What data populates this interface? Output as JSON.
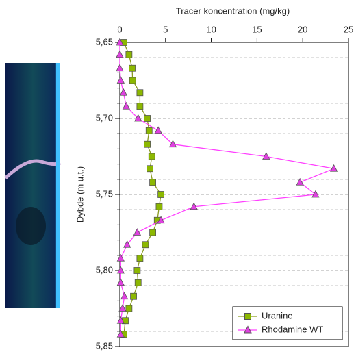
{
  "chart_data": {
    "type": "line",
    "title": "Tracer koncentration (mg/kg)",
    "y_label": "Dybde (m u.t.)",
    "y": [
      5.65,
      5.658,
      5.667,
      5.675,
      5.683,
      5.692,
      5.7,
      5.708,
      5.717,
      5.725,
      5.733,
      5.742,
      5.75,
      5.758,
      5.767,
      5.775,
      5.783,
      5.792,
      5.8,
      5.808,
      5.817,
      5.825,
      5.833,
      5.842
    ],
    "series": [
      {
        "name": "Uranine",
        "color": "#8cb800",
        "line_color": "#8a9a20",
        "marker": "square",
        "values": [
          0.45,
          1.0,
          1.35,
          1.4,
          2.2,
          2.2,
          3.0,
          3.2,
          3.0,
          3.5,
          3.3,
          3.6,
          4.5,
          4.3,
          4.1,
          3.6,
          2.8,
          2.2,
          1.9,
          2.0,
          1.5,
          1.0,
          0.6,
          0.45
        ]
      },
      {
        "name": "Rhodamine WT",
        "color": "#e040e0",
        "line_color": "#ff40ff",
        "marker": "triangle",
        "values": [
          0.0,
          0.0,
          0.0,
          0.1,
          0.4,
          0.7,
          2.0,
          4.2,
          5.8,
          16.0,
          23.4,
          19.7,
          21.4,
          8.1,
          4.5,
          1.9,
          0.8,
          0.1,
          0.1,
          0.1,
          0.5,
          0.3,
          0.1,
          0.1
        ]
      }
    ],
    "xlim": [
      0,
      25
    ],
    "xticks": [
      0,
      5,
      10,
      15,
      20,
      25
    ],
    "ylim": [
      5.65,
      5.85
    ],
    "yticks": [
      {
        "value": 5.65,
        "label": "5,65"
      },
      {
        "value": 5.7,
        "label": "5,70"
      },
      {
        "value": 5.75,
        "label": "5,75"
      },
      {
        "value": 5.8,
        "label": "5,80"
      },
      {
        "value": 5.85,
        "label": "5,85"
      }
    ],
    "minor_yticks": [
      5.66,
      5.67,
      5.68,
      5.69,
      5.71,
      5.72,
      5.73,
      5.74,
      5.76,
      5.77,
      5.78,
      5.79,
      5.81,
      5.82,
      5.83,
      5.84
    ],
    "y_inverted": true,
    "x_axis_position": "top",
    "grid": true,
    "legend": "lower right"
  }
}
